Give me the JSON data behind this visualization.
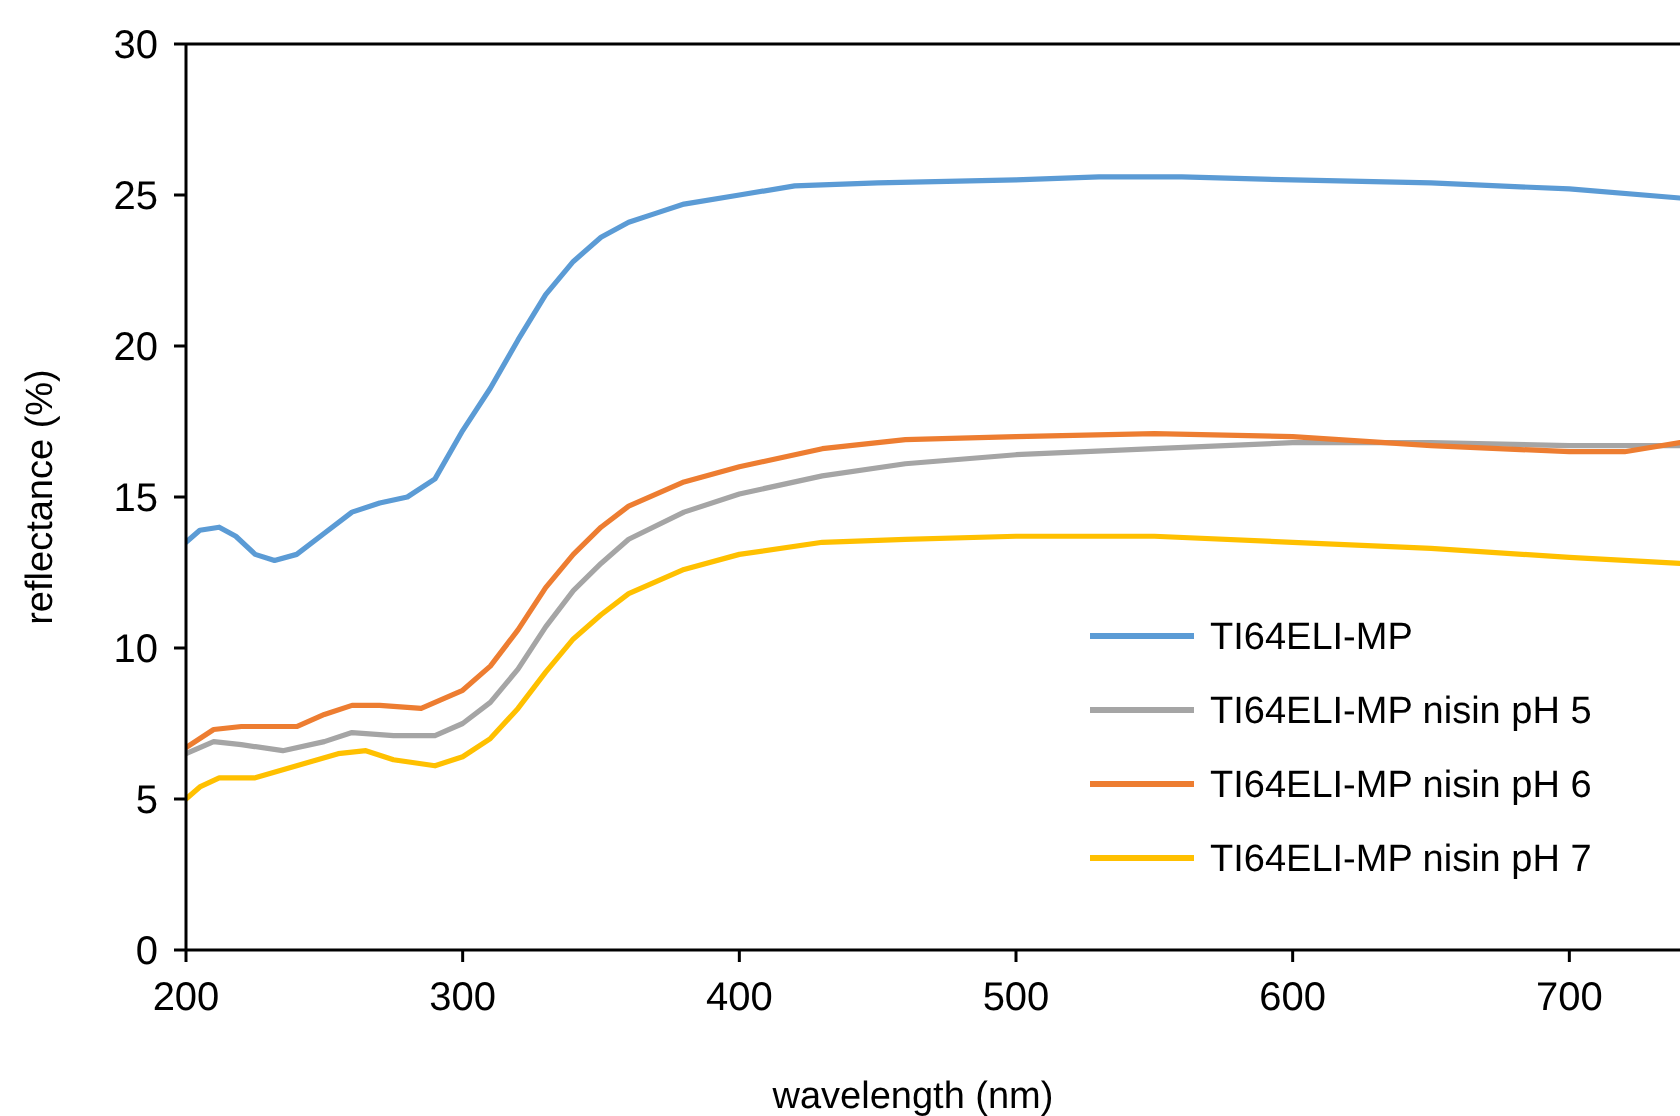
{
  "chart_data": {
    "type": "line",
    "xlabel": "wavelength (nm)",
    "ylabel": "reflectance (%)",
    "xlim": [
      200,
      740
    ],
    "xticks": [
      200,
      300,
      400,
      500,
      600,
      700
    ],
    "ylim": [
      0,
      30
    ],
    "yticks": [
      0,
      5,
      10,
      15,
      20,
      25,
      30
    ],
    "grid": false,
    "legend": "bottom right",
    "marker": "none",
    "line_style": "solid",
    "series": [
      {
        "name": "TI64ELI-MP",
        "color": "#5b9bd5",
        "x": [
          200,
          205,
          212,
          218,
          225,
          232,
          240,
          250,
          260,
          270,
          280,
          290,
          300,
          310,
          320,
          330,
          340,
          350,
          360,
          370,
          380,
          400,
          420,
          450,
          500,
          530,
          560,
          600,
          650,
          700,
          740
        ],
        "values": [
          13.5,
          13.9,
          14.0,
          13.7,
          13.1,
          12.9,
          13.1,
          13.8,
          14.5,
          14.8,
          15.0,
          15.6,
          17.2,
          18.6,
          20.2,
          21.7,
          22.8,
          23.6,
          24.1,
          24.4,
          24.7,
          25.0,
          25.3,
          25.4,
          25.5,
          25.6,
          25.6,
          25.5,
          25.4,
          25.2,
          24.9
        ]
      },
      {
        "name": "TI64ELI-MP nisin pH 5",
        "color": "#a5a5a5",
        "x": [
          200,
          210,
          220,
          235,
          250,
          260,
          275,
          290,
          300,
          310,
          320,
          330,
          340,
          350,
          360,
          380,
          400,
          430,
          460,
          500,
          550,
          600,
          650,
          700,
          740
        ],
        "values": [
          6.5,
          6.9,
          6.8,
          6.6,
          6.9,
          7.2,
          7.1,
          7.1,
          7.5,
          8.2,
          9.3,
          10.7,
          11.9,
          12.8,
          13.6,
          14.5,
          15.1,
          15.7,
          16.1,
          16.4,
          16.6,
          16.8,
          16.8,
          16.7,
          16.7
        ]
      },
      {
        "name": "TI64ELI-MP nisin pH 6",
        "color": "#ed7d31",
        "x": [
          200,
          210,
          220,
          240,
          250,
          260,
          270,
          285,
          300,
          310,
          320,
          330,
          340,
          350,
          360,
          380,
          400,
          430,
          460,
          500,
          550,
          600,
          650,
          700,
          720,
          740
        ],
        "values": [
          6.7,
          7.3,
          7.4,
          7.4,
          7.8,
          8.1,
          8.1,
          8.0,
          8.6,
          9.4,
          10.6,
          12.0,
          13.1,
          14.0,
          14.7,
          15.5,
          16.0,
          16.6,
          16.9,
          17.0,
          17.1,
          17.0,
          16.7,
          16.5,
          16.5,
          16.8
        ]
      },
      {
        "name": "TI64ELI-MP nisin pH 7",
        "color": "#ffc000",
        "x": [
          200,
          205,
          212,
          225,
          240,
          255,
          265,
          275,
          290,
          300,
          310,
          320,
          330,
          340,
          350,
          360,
          380,
          400,
          430,
          460,
          500,
          550,
          600,
          650,
          700,
          740
        ],
        "values": [
          5.0,
          5.4,
          5.7,
          5.7,
          6.1,
          6.5,
          6.6,
          6.3,
          6.1,
          6.4,
          7.0,
          8.0,
          9.2,
          10.3,
          11.1,
          11.8,
          12.6,
          13.1,
          13.5,
          13.6,
          13.7,
          13.7,
          13.5,
          13.3,
          13.0,
          12.8
        ]
      }
    ]
  }
}
